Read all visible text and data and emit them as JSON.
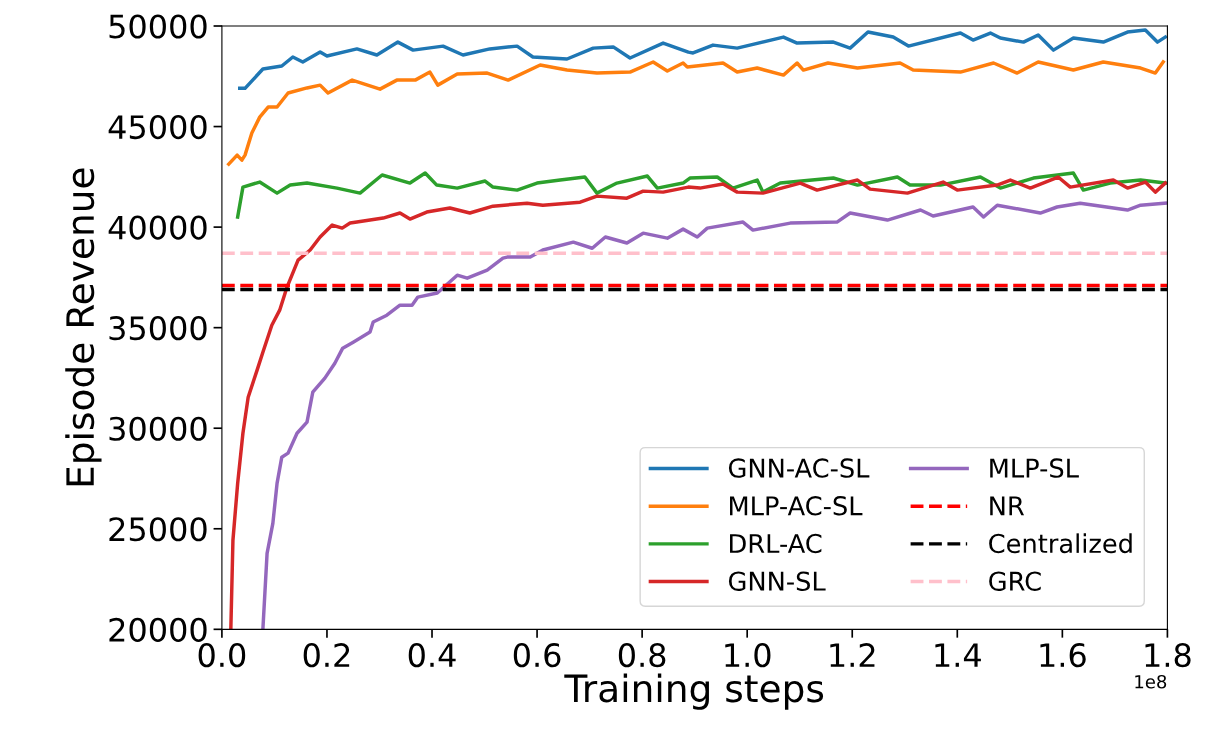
{
  "chart_data": {
    "type": "line",
    "xlabel": "Training steps",
    "ylabel": "Episode Revenue",
    "annotations": [
      "1e8"
    ],
    "xlim": [
      0,
      1.8
    ],
    "ylim": [
      20000,
      50000
    ],
    "xticks": [
      {
        "value": 0,
        "label": "0.0"
      },
      0.2,
      0.4,
      0.6,
      0.8,
      {
        "value": 1,
        "label": "1.0"
      },
      1.2,
      1.4,
      1.6,
      1.8
    ],
    "yticks": [
      20000,
      25000,
      30000,
      35000,
      40000,
      45000,
      50000
    ],
    "grid": false,
    "legend": "bottom right",
    "line_style": "solid",
    "marker": "none",
    "series": [
      {
        "name": "GNN-AC-SL",
        "color": "#1f77b4",
        "x": [
          0.034,
          0.044,
          0.078,
          0.114,
          0.135,
          0.154,
          0.187,
          0.2,
          0.257,
          0.295,
          0.335,
          0.364,
          0.421,
          0.459,
          0.51,
          0.562,
          0.592,
          0.657,
          0.707,
          0.745,
          0.777,
          0.84,
          0.888,
          0.897,
          0.935,
          0.981,
          1.069,
          1.095,
          1.164,
          1.196,
          1.23,
          1.278,
          1.307,
          1.406,
          1.43,
          1.463,
          1.482,
          1.526,
          1.554,
          1.583,
          1.621,
          1.678,
          1.724,
          1.758,
          1.781,
          1.796
        ],
        "values": [
          46900,
          46900,
          47860,
          48010,
          48460,
          48210,
          48710,
          48510,
          48860,
          48560,
          49200,
          48800,
          49000,
          48560,
          48860,
          49000,
          48460,
          48360,
          48900,
          48960,
          48410,
          49150,
          48700,
          48660,
          49050,
          48900,
          49450,
          49150,
          49200,
          48900,
          49700,
          49450,
          49000,
          49650,
          49300,
          49650,
          49400,
          49200,
          49550,
          48800,
          49400,
          49200,
          49700,
          49800,
          49200,
          49450
        ]
      },
      {
        "name": "MLP-AC-SL",
        "color": "#ff7f0e",
        "x": [
          0.013,
          0.029,
          0.038,
          0.044,
          0.057,
          0.072,
          0.088,
          0.105,
          0.126,
          0.162,
          0.187,
          0.202,
          0.248,
          0.301,
          0.333,
          0.368,
          0.396,
          0.411,
          0.448,
          0.505,
          0.545,
          0.606,
          0.657,
          0.714,
          0.777,
          0.821,
          0.848,
          0.878,
          0.886,
          0.954,
          0.981,
          1.019,
          1.069,
          1.095,
          1.107,
          1.154,
          1.21,
          1.291,
          1.316,
          1.406,
          1.469,
          1.514,
          1.554,
          1.621,
          1.678,
          1.749,
          1.777,
          1.792
        ],
        "values": [
          43130,
          43580,
          43330,
          43580,
          44680,
          45470,
          45970,
          45970,
          46670,
          46920,
          47060,
          46670,
          47310,
          46860,
          47310,
          47310,
          47710,
          47060,
          47610,
          47660,
          47310,
          48060,
          47810,
          47660,
          47710,
          48210,
          47760,
          48160,
          47960,
          48160,
          47710,
          47910,
          47560,
          48160,
          47810,
          48160,
          47910,
          48160,
          47810,
          47710,
          48160,
          47660,
          48210,
          47810,
          48210,
          47910,
          47660,
          48210
        ]
      },
      {
        "name": "DRL-AC",
        "color": "#2ca02c",
        "x": [
          0.03,
          0.04,
          0.072,
          0.105,
          0.13,
          0.162,
          0.219,
          0.263,
          0.305,
          0.358,
          0.387,
          0.409,
          0.448,
          0.501,
          0.516,
          0.562,
          0.6,
          0.644,
          0.691,
          0.714,
          0.752,
          0.81,
          0.829,
          0.878,
          0.891,
          0.943,
          0.973,
          1.019,
          1.03,
          1.063,
          1.164,
          1.21,
          1.286,
          1.31,
          1.368,
          1.444,
          1.482,
          1.545,
          1.621,
          1.64,
          1.691,
          1.749,
          1.796
        ],
        "values": [
          40500,
          41990,
          42240,
          41690,
          42090,
          42190,
          41940,
          41690,
          42590,
          42190,
          42690,
          42090,
          41940,
          42290,
          41990,
          41840,
          42190,
          42340,
          42490,
          41690,
          42190,
          42540,
          41940,
          42190,
          42440,
          42490,
          41940,
          42340,
          41740,
          42190,
          42440,
          42090,
          42490,
          42090,
          42090,
          42490,
          41940,
          42440,
          42690,
          41840,
          42190,
          42340,
          42190
        ]
      },
      {
        "name": "GNN-SL",
        "color": "#d62728",
        "x": [
          0.017,
          0.021,
          0.03,
          0.04,
          0.05,
          0.067,
          0.078,
          0.095,
          0.11,
          0.124,
          0.145,
          0.168,
          0.187,
          0.21,
          0.229,
          0.244,
          0.257,
          0.307,
          0.339,
          0.358,
          0.39,
          0.434,
          0.472,
          0.516,
          0.581,
          0.611,
          0.682,
          0.714,
          0.771,
          0.802,
          0.84,
          0.888,
          0.91,
          0.954,
          0.981,
          1.03,
          1.101,
          1.133,
          1.21,
          1.234,
          1.305,
          1.373,
          1.4,
          1.476,
          1.501,
          1.539,
          1.592,
          1.615,
          1.697,
          1.724,
          1.758,
          1.777,
          1.796
        ],
        "values": [
          20000,
          24430,
          27260,
          29750,
          31540,
          32890,
          33780,
          35120,
          35870,
          37020,
          38360,
          38860,
          39510,
          40100,
          39950,
          40200,
          40250,
          40450,
          40700,
          40400,
          40750,
          40950,
          40700,
          41040,
          41190,
          41090,
          41240,
          41540,
          41440,
          41790,
          41740,
          41990,
          41940,
          42140,
          41740,
          41690,
          42190,
          41840,
          42340,
          41890,
          41690,
          42240,
          41840,
          42090,
          42340,
          41940,
          42490,
          41990,
          42340,
          41940,
          42240,
          41740,
          42190
        ]
      },
      {
        "name": "MLP-SL",
        "color": "#9467bd",
        "x": [
          0.078,
          0.086,
          0.097,
          0.105,
          0.114,
          0.126,
          0.143,
          0.162,
          0.173,
          0.196,
          0.215,
          0.23,
          0.25,
          0.282,
          0.288,
          0.314,
          0.339,
          0.362,
          0.373,
          0.41,
          0.448,
          0.467,
          0.505,
          0.535,
          0.543,
          0.587,
          0.611,
          0.669,
          0.705,
          0.73,
          0.771,
          0.802,
          0.848,
          0.878,
          0.905,
          0.924,
          0.992,
          1.011,
          1.082,
          1.171,
          1.196,
          1.267,
          1.33,
          1.354,
          1.43,
          1.45,
          1.476,
          1.558,
          1.59,
          1.634,
          1.724,
          1.749,
          1.796
        ],
        "values": [
          20000,
          23780,
          25270,
          27260,
          28560,
          28760,
          29750,
          30300,
          31790,
          32490,
          33230,
          33980,
          34280,
          34780,
          35280,
          35620,
          36120,
          36120,
          36520,
          36720,
          37610,
          37460,
          37860,
          38460,
          38510,
          38510,
          38860,
          39250,
          38950,
          39510,
          39210,
          39700,
          39450,
          39900,
          39510,
          39950,
          40250,
          39850,
          40200,
          40250,
          40700,
          40350,
          40850,
          40550,
          41000,
          40500,
          41090,
          40700,
          41000,
          41190,
          40850,
          41090,
          41190
        ]
      }
    ],
    "ref_lines": [
      {
        "axis": "y",
        "value": 37100,
        "label": "NR",
        "color": "#ff0000",
        "line_style": "dashed"
      },
      {
        "axis": "y",
        "value": 36900,
        "label": "Centralized",
        "color": "#000000",
        "line_style": "dashed"
      },
      {
        "axis": "y",
        "value": 38700,
        "label": "GRC",
        "color": "#ffc0cb",
        "line_style": "dashed"
      }
    ]
  }
}
